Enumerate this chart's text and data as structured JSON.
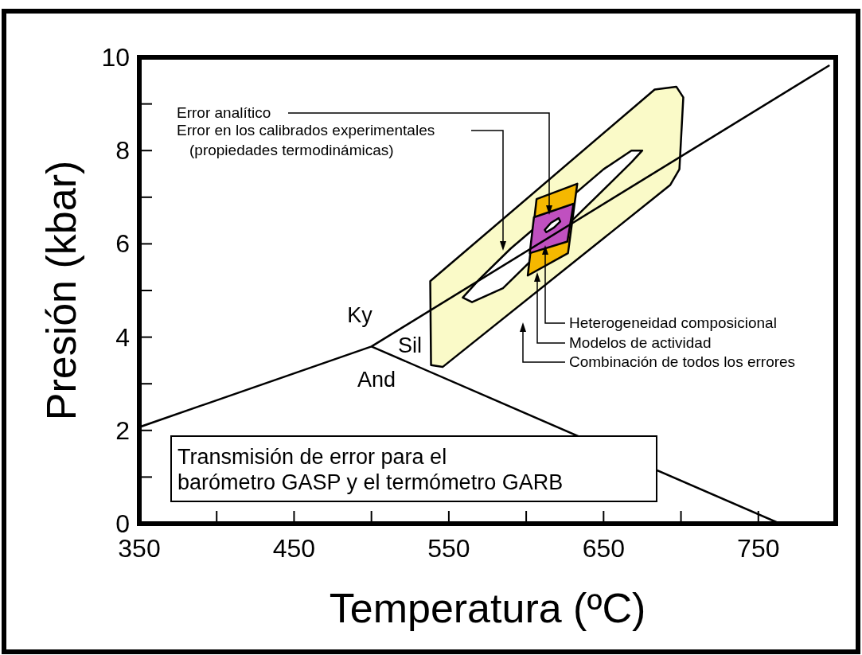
{
  "chart_data": {
    "type": "line",
    "xlabel": "Temperatura (ºC)",
    "ylabel": "Presión (kbar)",
    "xlim": [
      350,
      800
    ],
    "ylim": [
      0,
      10
    ],
    "xticks": [
      350,
      {
        "value": 400,
        "label": null
      },
      450,
      {
        "value": 500,
        "label": null
      },
      550,
      {
        "value": 600,
        "label": null
      },
      650,
      {
        "value": 700,
        "label": null
      },
      750
    ],
    "yticks": [
      0,
      {
        "value": 1,
        "label": null
      },
      2,
      {
        "value": 3,
        "label": null
      },
      4,
      {
        "value": 5,
        "label": null
      },
      6,
      {
        "value": 7,
        "label": null
      },
      8,
      {
        "value": 9,
        "label": null
      },
      10
    ],
    "series": [
      {
        "type": "area",
        "color": "#fafac8",
        "x": [
          538,
          538.5,
          546,
          693,
          699,
          701.5,
          697,
          683,
          538
        ],
        "values": [
          5.2,
          3.4,
          3.36,
          7.26,
          7.6,
          9.14,
          9.37,
          9.31,
          5.2
        ]
      },
      {
        "type": "area",
        "color": "#ffffff",
        "x": [
          559,
          570,
          590,
          650,
          668,
          675,
          668,
          645,
          585,
          565,
          559
        ],
        "values": [
          4.85,
          5.25,
          5.9,
          7.6,
          8.0,
          8.0,
          7.75,
          7.0,
          5.05,
          4.75,
          4.85
        ]
      },
      {
        "type": "area",
        "color": "#f5b800",
        "x": [
          606.7,
          633,
          627,
          601,
          606.7
        ],
        "values": [
          6.96,
          7.29,
          5.8,
          5.32,
          6.96
        ]
      },
      {
        "type": "area",
        "color": "#c050c0",
        "x": [
          605,
          630.6,
          626.6,
          602.3,
          605
        ],
        "values": [
          6.57,
          6.86,
          6.05,
          5.8,
          6.57
        ]
      },
      {
        "type": "area",
        "color": "#ffffff",
        "x": [
          612,
          616,
          621,
          622,
          618,
          613,
          612
        ],
        "values": [
          6.3,
          6.45,
          6.55,
          6.48,
          6.35,
          6.25,
          6.3
        ]
      },
      {
        "color": "#000000",
        "x": [
          350,
          500,
          796
        ],
        "values": [
          2.07,
          3.8,
          9.83
        ]
      },
      {
        "color": "#000000",
        "x": [
          500,
          764
        ],
        "values": [
          3.8,
          0
        ]
      }
    ],
    "annotations": [
      "Error analítico",
      "Error en los calibrados experimentales\n(propiedades termodinámicas)",
      "Heterogeneidad composicional",
      "Modelos de actividad",
      "Combinación de todos los errores",
      "Ky",
      "Sil",
      "And",
      "Transmisión de error para el\nbarómetro GASP y el termómetro GARB"
    ]
  }
}
